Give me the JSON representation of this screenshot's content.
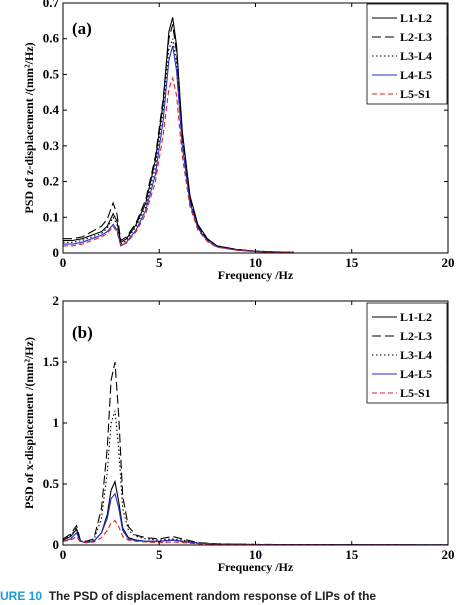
{
  "chart_data": [
    {
      "type": "line",
      "panel_label": "(a)",
      "xlabel": "Frequency /Hz",
      "ylabel": "PSD of z-displacement /(mm²/Hz)",
      "xlim": [
        0,
        20
      ],
      "ylim": [
        0,
        0.7
      ],
      "xticks": [
        "0",
        "5",
        "10",
        "15",
        "20"
      ],
      "yticks": [
        "0",
        "0.1",
        "0.2",
        "0.3",
        "0.4",
        "0.5",
        "0.6",
        "0.7"
      ],
      "legend_position": "top-right",
      "x": [
        0,
        0.5,
        1,
        1.5,
        2,
        2.3,
        2.6,
        2.8,
        3.0,
        3.3,
        3.8,
        4.3,
        4.8,
        5.2,
        5.5,
        5.7,
        5.9,
        6.2,
        6.6,
        7.0,
        7.5,
        8.0,
        9.0,
        10.0,
        11.0,
        12.0
      ],
      "series": [
        {
          "name": "L1-L2",
          "color": "#000000",
          "dash": "solid",
          "values": [
            0.035,
            0.035,
            0.04,
            0.05,
            0.06,
            0.075,
            0.11,
            0.09,
            0.03,
            0.04,
            0.08,
            0.14,
            0.26,
            0.42,
            0.62,
            0.66,
            0.58,
            0.34,
            0.16,
            0.08,
            0.04,
            0.02,
            0.01,
            0.005,
            0.003,
            0.002
          ]
        },
        {
          "name": "L2-L3",
          "color": "#000000",
          "dash": "longdash",
          "values": [
            0.04,
            0.04,
            0.045,
            0.06,
            0.075,
            0.095,
            0.14,
            0.11,
            0.035,
            0.045,
            0.085,
            0.15,
            0.27,
            0.43,
            0.6,
            0.64,
            0.56,
            0.33,
            0.15,
            0.075,
            0.038,
            0.02,
            0.01,
            0.005,
            0.003,
            0.002
          ]
        },
        {
          "name": "L3-L4",
          "color": "#000000",
          "dash": "dotted",
          "values": [
            0.03,
            0.03,
            0.035,
            0.045,
            0.055,
            0.07,
            0.1,
            0.08,
            0.025,
            0.035,
            0.075,
            0.13,
            0.24,
            0.4,
            0.57,
            0.6,
            0.53,
            0.32,
            0.15,
            0.075,
            0.036,
            0.018,
            0.009,
            0.005,
            0.003,
            0.002
          ]
        },
        {
          "name": "L4-L5",
          "color": "#1f2fd6",
          "dash": "solid",
          "values": [
            0.025,
            0.025,
            0.03,
            0.04,
            0.05,
            0.06,
            0.08,
            0.065,
            0.02,
            0.03,
            0.065,
            0.12,
            0.22,
            0.37,
            0.54,
            0.58,
            0.51,
            0.3,
            0.14,
            0.07,
            0.034,
            0.017,
            0.008,
            0.004,
            0.002,
            0.002
          ]
        },
        {
          "name": "L5-S1",
          "color": "#e02020",
          "dash": "dash",
          "values": [
            0.02,
            0.02,
            0.025,
            0.035,
            0.045,
            0.055,
            0.075,
            0.06,
            0.02,
            0.028,
            0.06,
            0.11,
            0.2,
            0.33,
            0.46,
            0.49,
            0.44,
            0.27,
            0.13,
            0.065,
            0.032,
            0.016,
            0.008,
            0.004,
            0.002,
            0.002
          ]
        }
      ]
    },
    {
      "type": "line",
      "panel_label": "(b)",
      "xlabel": "Frequency /Hz",
      "ylabel": "PSD of x-displacement /(mm²/Hz)",
      "xlim": [
        0,
        20
      ],
      "ylim": [
        0,
        2
      ],
      "xticks": [
        "0",
        "5",
        "10",
        "15",
        "20"
      ],
      "yticks": [
        "0",
        "0.5",
        "1",
        "1.5",
        "2"
      ],
      "legend_position": "top-right",
      "x": [
        0,
        0.4,
        0.7,
        0.9,
        1.2,
        1.6,
        2.0,
        2.3,
        2.5,
        2.7,
        2.9,
        3.1,
        3.4,
        3.8,
        4.3,
        5.0,
        5.7,
        6.2,
        7.0,
        8.0,
        10.0,
        15.0,
        20.0
      ],
      "series": [
        {
          "name": "L1-L2",
          "color": "#000000",
          "dash": "solid",
          "values": [
            0.04,
            0.07,
            0.13,
            0.03,
            0.02,
            0.03,
            0.1,
            0.25,
            0.45,
            0.52,
            0.35,
            0.14,
            0.06,
            0.04,
            0.03,
            0.03,
            0.04,
            0.03,
            0.015,
            0.008,
            0.004,
            0.002,
            0.001
          ]
        },
        {
          "name": "L2-L3",
          "color": "#000000",
          "dash": "longdash",
          "values": [
            0.05,
            0.09,
            0.16,
            0.04,
            0.03,
            0.05,
            0.3,
            0.8,
            1.35,
            1.5,
            1.05,
            0.4,
            0.15,
            0.08,
            0.06,
            0.05,
            0.07,
            0.05,
            0.02,
            0.01,
            0.005,
            0.002,
            0.001
          ]
        },
        {
          "name": "L3-L4",
          "color": "#000000",
          "dash": "dotted",
          "values": [
            0.045,
            0.08,
            0.14,
            0.035,
            0.025,
            0.04,
            0.22,
            0.6,
            1.0,
            1.1,
            0.78,
            0.3,
            0.12,
            0.07,
            0.05,
            0.04,
            0.05,
            0.04,
            0.018,
            0.009,
            0.004,
            0.002,
            0.001
          ]
        },
        {
          "name": "L4-L5",
          "color": "#1f2fd6",
          "dash": "solid",
          "values": [
            0.03,
            0.05,
            0.1,
            0.03,
            0.02,
            0.03,
            0.1,
            0.22,
            0.38,
            0.42,
            0.3,
            0.12,
            0.05,
            0.035,
            0.03,
            0.03,
            0.04,
            0.03,
            0.015,
            0.007,
            0.003,
            0.002,
            0.001
          ]
        },
        {
          "name": "L5-S1",
          "color": "#e02020",
          "dash": "dash",
          "values": [
            0.03,
            0.04,
            0.07,
            0.025,
            0.02,
            0.025,
            0.06,
            0.12,
            0.18,
            0.2,
            0.15,
            0.07,
            0.04,
            0.03,
            0.025,
            0.02,
            0.025,
            0.02,
            0.01,
            0.005,
            0.003,
            0.002,
            0.001
          ]
        }
      ]
    }
  ],
  "caption": {
    "label": "URE 10",
    "text": "The PSD of displacement random response of LIPs of the"
  }
}
